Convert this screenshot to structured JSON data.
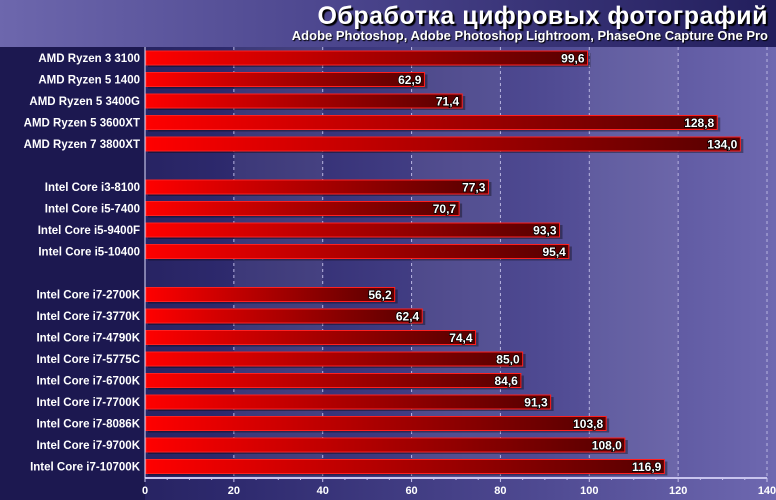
{
  "chart_data": {
    "type": "bar",
    "orientation": "horizontal",
    "title": "Обработка цифровых фотографий",
    "subtitle": "Adobe Photoshop, Adobe Photoshop Lightroom, PhaseOne Capture One Pro",
    "groups": [
      {
        "categories": [
          "AMD Ryzen 3 3100",
          "AMD Ryzen 5 1400",
          "AMD Ryzen 5 3400G",
          "AMD Ryzen 5 3600XT",
          "AMD Ryzen 7 3800XT"
        ],
        "values": [
          99.6,
          62.9,
          71.4,
          128.8,
          134.0
        ],
        "labels": [
          "99,6",
          "62,9",
          "71,4",
          "128,8",
          "134,0"
        ]
      },
      {
        "categories": [
          "Intel Core i3-8100",
          "Intel Core i5-7400",
          "Intel Core i5-9400F",
          "Intel Core i5-10400"
        ],
        "values": [
          77.3,
          70.7,
          93.3,
          95.4
        ],
        "labels": [
          "77,3",
          "70,7",
          "93,3",
          "95,4"
        ]
      },
      {
        "categories": [
          "Intel Core i7-2700K",
          "Intel Core i7-3770K",
          "Intel Core i7-4790K",
          "Intel Core i7-5775C",
          "Intel Core i7-6700K",
          "Intel Core i7-7700K",
          "Intel Core i7-8086K",
          "Intel Core i7-9700K",
          "Intel Core i7-10700K"
        ],
        "values": [
          56.2,
          62.4,
          74.4,
          85.0,
          84.6,
          91.3,
          103.8,
          108.0,
          116.9
        ],
        "labels": [
          "56,2",
          "62,4",
          "74,4",
          "85,0",
          "84,6",
          "91,3",
          "103,8",
          "108,0",
          "116,9"
        ]
      }
    ],
    "xlim": [
      0,
      140
    ],
    "xticks": [
      0,
      20,
      40,
      60,
      80,
      100,
      120,
      140
    ],
    "grid": true,
    "colors": {
      "bar_start": "#ff0000",
      "bar_end": "#550000",
      "text": "#ffffff"
    }
  }
}
